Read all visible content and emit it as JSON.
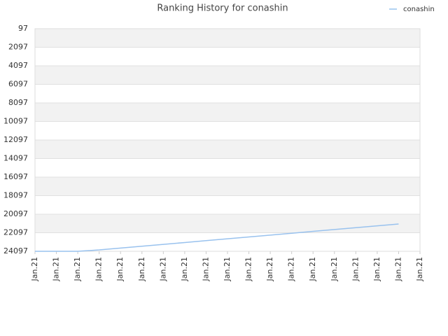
{
  "chart_data": {
    "type": "line",
    "title": "Ranking History for conashin",
    "categories": [
      "Jan.21",
      "Jan.21",
      "Jan.21",
      "Jan.21",
      "Jan.21",
      "Jan.21",
      "Jan.21",
      "Jan.21",
      "Jan.21",
      "Jan.21",
      "Jan.21",
      "Jan.21",
      "Jan.21",
      "Jan.21",
      "Jan.21",
      "Jan.21",
      "Jan.21",
      "Jan.21",
      "Jan.21"
    ],
    "series": [
      {
        "name": "conashin",
        "color": "#99c2ee",
        "values": [
          24097,
          24097,
          24097,
          23950,
          23750,
          23550,
          23350,
          23150,
          22950,
          22750,
          22550,
          22350,
          22150,
          21950,
          21750,
          21550,
          21350,
          21150,
          null
        ]
      }
    ],
    "ylim": [
      24097,
      97
    ],
    "yticks": [
      97,
      2097,
      4097,
      6097,
      8097,
      10097,
      12097,
      14097,
      16097,
      18097,
      20097,
      22097,
      24097
    ],
    "grid": true,
    "legend": "top-right"
  }
}
